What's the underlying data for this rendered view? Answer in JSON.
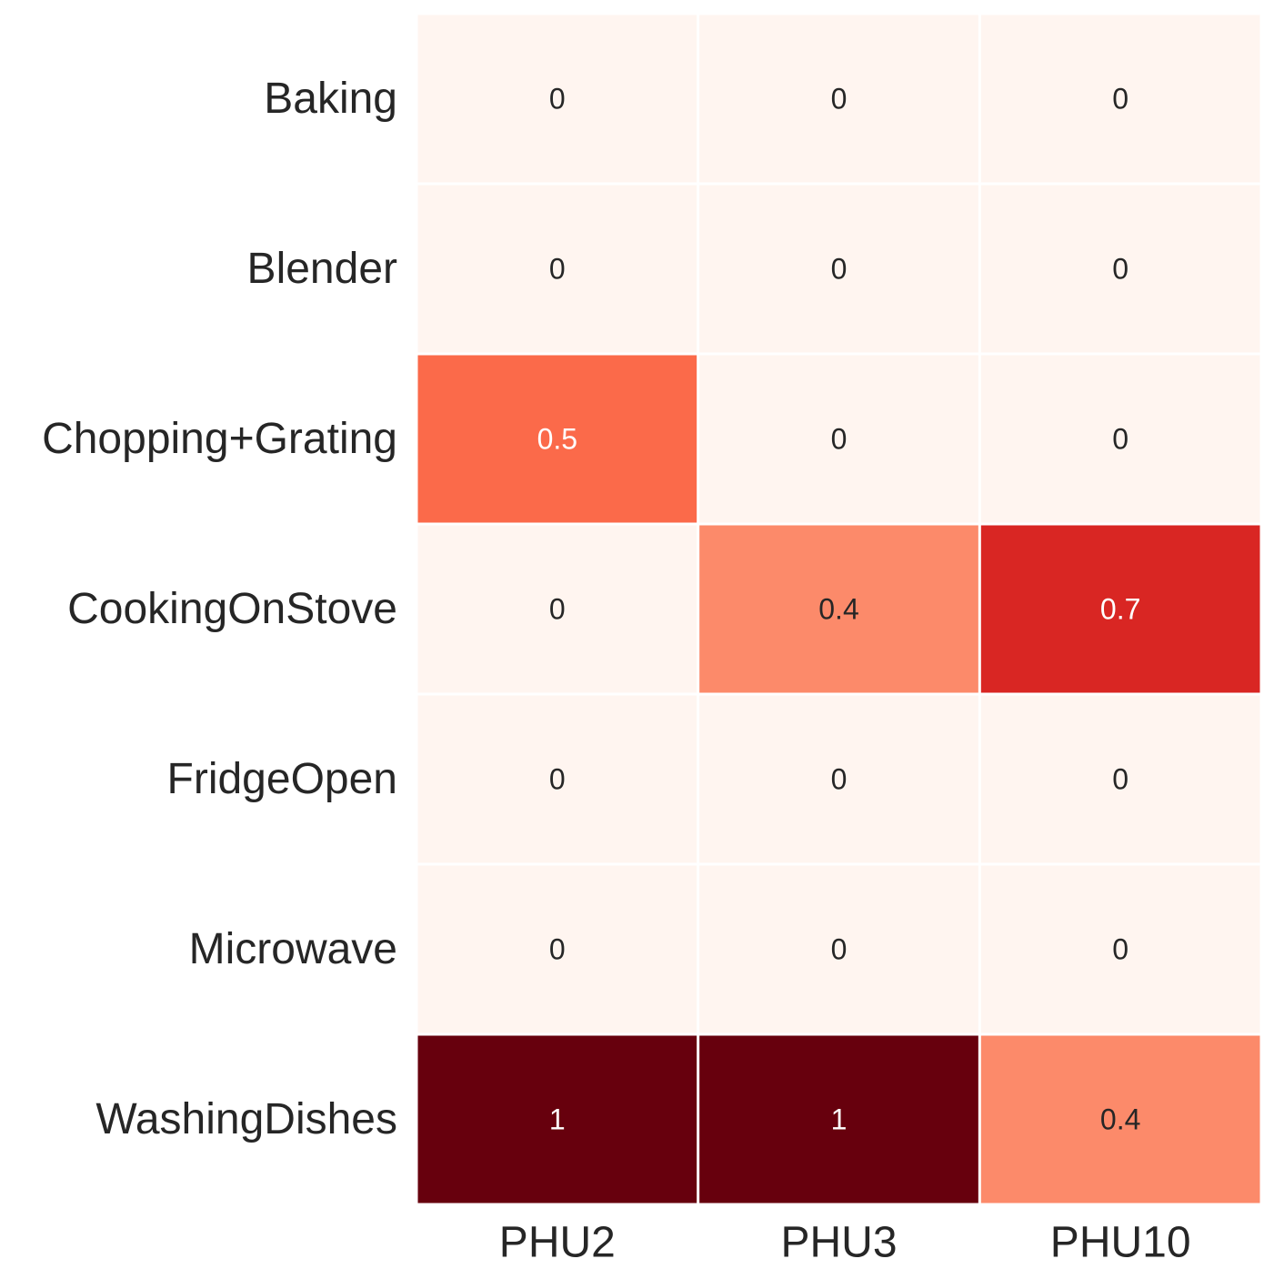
{
  "chart_data": {
    "type": "heatmap",
    "title": "",
    "xlabel": "",
    "ylabel": "",
    "x_categories": [
      "PHU2",
      "PHU3",
      "PHU10"
    ],
    "y_categories": [
      "Baking",
      "Blender",
      "Chopping+Grating",
      "CookingOnStove",
      "FridgeOpen",
      "Microwave",
      "WashingDishes"
    ],
    "values": [
      [
        0,
        0,
        0
      ],
      [
        0,
        0,
        0
      ],
      [
        0.5,
        0,
        0
      ],
      [
        0,
        0.4,
        0.7
      ],
      [
        0,
        0,
        0
      ],
      [
        0,
        0,
        0
      ],
      [
        1,
        1,
        0.4
      ]
    ],
    "cell_labels": [
      [
        "0",
        "0",
        "0"
      ],
      [
        "0",
        "0",
        "0"
      ],
      [
        "0.5",
        "0",
        "0"
      ],
      [
        "0",
        "0.4",
        "0.7"
      ],
      [
        "0",
        "0",
        "0"
      ],
      [
        "0",
        "0",
        "0"
      ],
      [
        "1",
        "1",
        "0.4"
      ]
    ],
    "value_range": [
      0,
      1
    ],
    "colormap": "Reds",
    "colorbar": false,
    "grid_line_color": "#ffffff",
    "dark_text_color": "#262626",
    "light_text_color": "#ffffff"
  }
}
